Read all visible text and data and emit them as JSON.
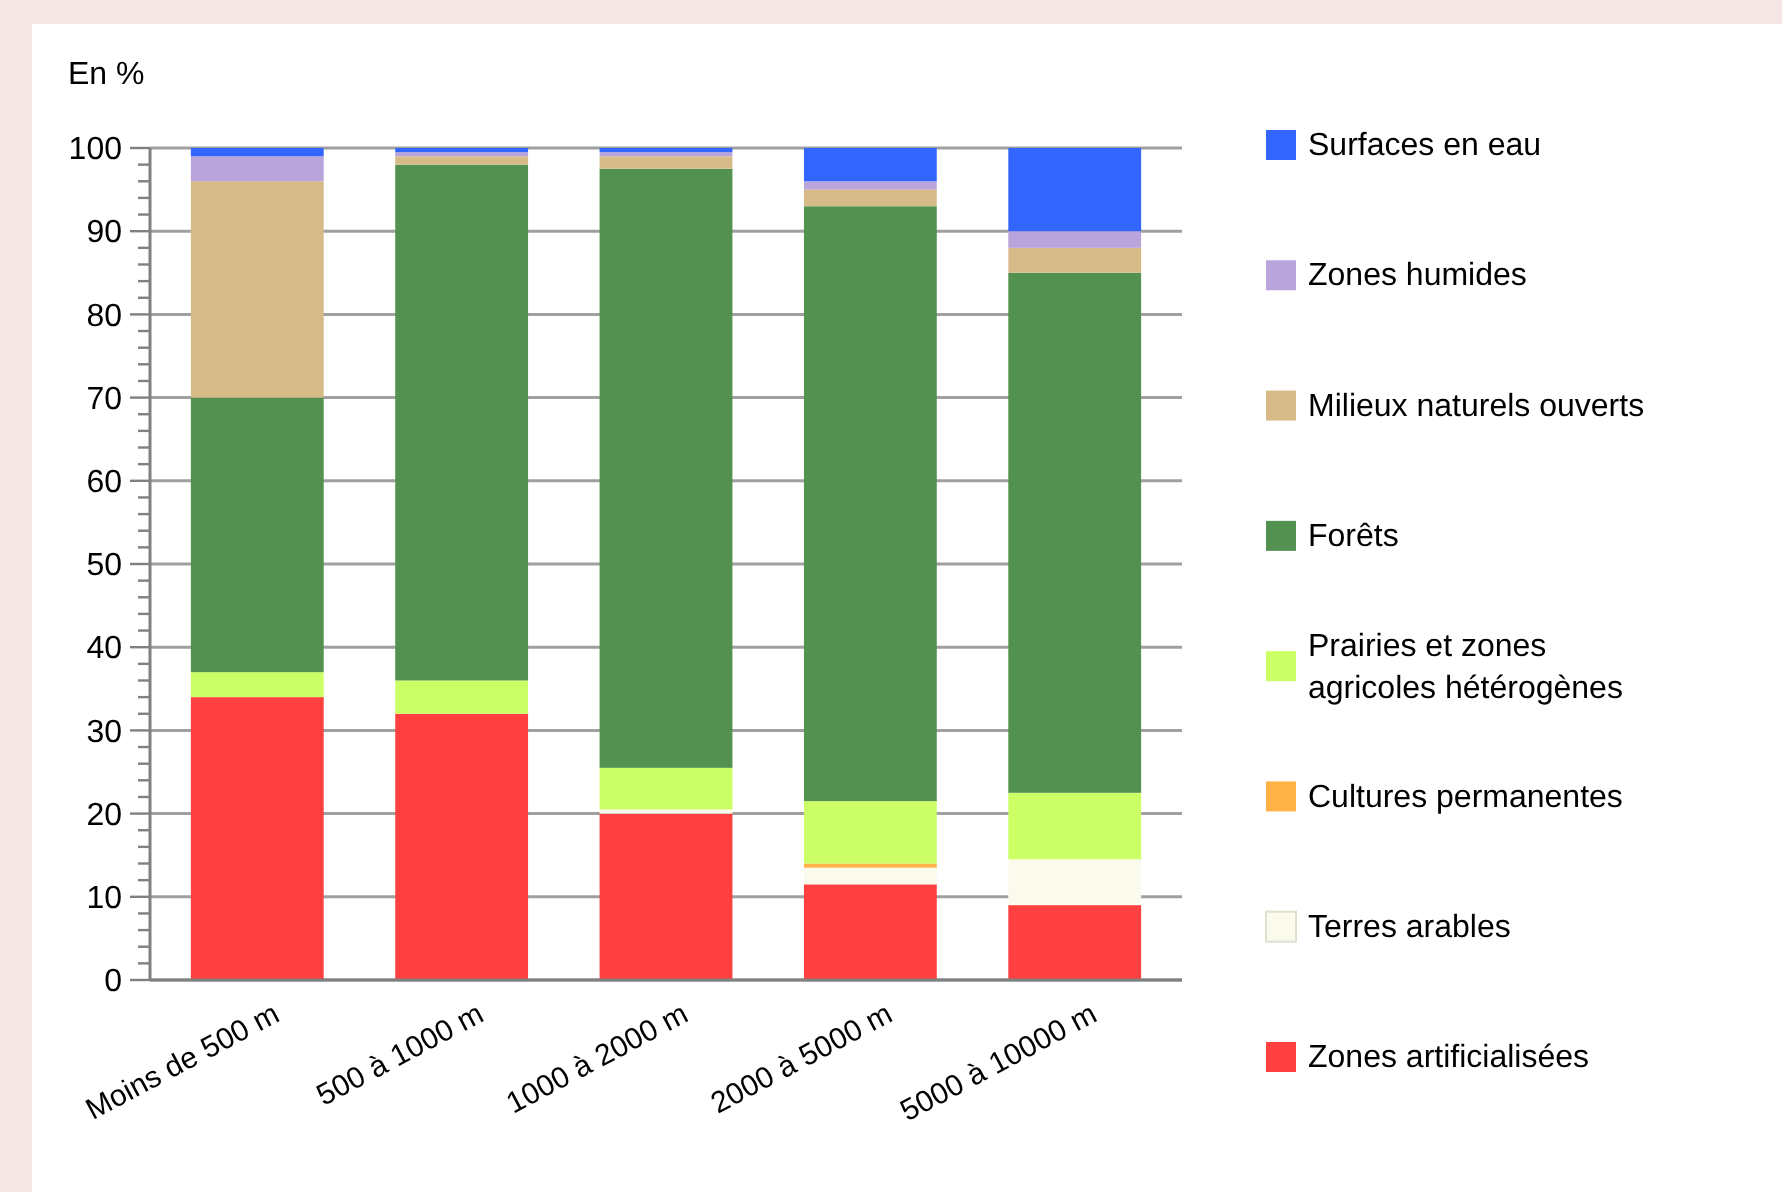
{
  "chart_data": {
    "type": "bar",
    "stacked": true,
    "ylabel": "En %",
    "categories": [
      "Moins de 500 m",
      "500 à 1000 m",
      "1000 à 2000 m",
      "2000 à 5000 m",
      "5000 à 10000 m"
    ],
    "series": [
      {
        "name": "Zones artificialisées",
        "color": "#ff4040",
        "values": [
          34,
          32,
          20,
          11.5,
          9
        ]
      },
      {
        "name": "Terres arables",
        "color": "#fbfbed",
        "values": [
          0,
          0,
          0.5,
          2,
          5.5
        ]
      },
      {
        "name": "Cultures permanentes",
        "color": "#ffb347",
        "values": [
          0,
          0,
          0,
          0.5,
          0
        ]
      },
      {
        "name": "Prairies et zones agricoles hétérogènes",
        "color": "#ccff66",
        "values": [
          3,
          4,
          5,
          7.5,
          8
        ]
      },
      {
        "name": "Forêts",
        "color": "#539150",
        "values": [
          33,
          62,
          72,
          71.5,
          62.5
        ]
      },
      {
        "name": "Milieux naturels ouverts",
        "color": "#d6bb88",
        "values": [
          26,
          1,
          1.5,
          2,
          3
        ]
      },
      {
        "name": "Zones humides",
        "color": "#b9a4dc",
        "values": [
          3,
          0.5,
          0.5,
          1,
          2
        ]
      },
      {
        "name": "Surfaces en eau",
        "color": "#3366ff",
        "values": [
          1,
          0.5,
          0.5,
          4,
          10
        ]
      }
    ],
    "ylim": [
      0,
      100
    ],
    "yticks": [
      0,
      {
        "value": 2,
        "label": null
      },
      {
        "value": 4,
        "label": null
      },
      {
        "value": 6,
        "label": null
      },
      {
        "value": 8,
        "label": null
      },
      10,
      {
        "value": 12,
        "label": null
      },
      {
        "value": 14,
        "label": null
      },
      {
        "value": 16,
        "label": null
      },
      {
        "value": 18,
        "label": null
      },
      20,
      {
        "value": 22,
        "label": null
      },
      {
        "value": 24,
        "label": null
      },
      {
        "value": 26,
        "label": null
      },
      {
        "value": 28,
        "label": null
      },
      30,
      {
        "value": 32,
        "label": null
      },
      {
        "value": 34,
        "label": null
      },
      {
        "value": 36,
        "label": null
      },
      {
        "value": 38,
        "label": null
      },
      40,
      {
        "value": 42,
        "label": null
      },
      {
        "value": 44,
        "label": null
      },
      {
        "value": 46,
        "label": null
      },
      {
        "value": 48,
        "label": null
      },
      50,
      {
        "value": 52,
        "label": null
      },
      {
        "value": 54,
        "label": null
      },
      {
        "value": 56,
        "label": null
      },
      {
        "value": 58,
        "label": null
      },
      60,
      {
        "value": 62,
        "label": null
      },
      {
        "value": 64,
        "label": null
      },
      {
        "value": 66,
        "label": null
      },
      {
        "value": 68,
        "label": null
      },
      70,
      {
        "value": 72,
        "label": null
      },
      {
        "value": 74,
        "label": null
      },
      {
        "value": 76,
        "label": null
      },
      {
        "value": 78,
        "label": null
      },
      80,
      {
        "value": 82,
        "label": null
      },
      {
        "value": 84,
        "label": null
      },
      {
        "value": 86,
        "label": null
      },
      {
        "value": 88,
        "label": null
      },
      90,
      {
        "value": 92,
        "label": null
      },
      {
        "value": 94,
        "label": null
      },
      {
        "value": 96,
        "label": null
      },
      {
        "value": 98,
        "label": null
      },
      100
    ],
    "grid": "y",
    "legend": "right"
  }
}
